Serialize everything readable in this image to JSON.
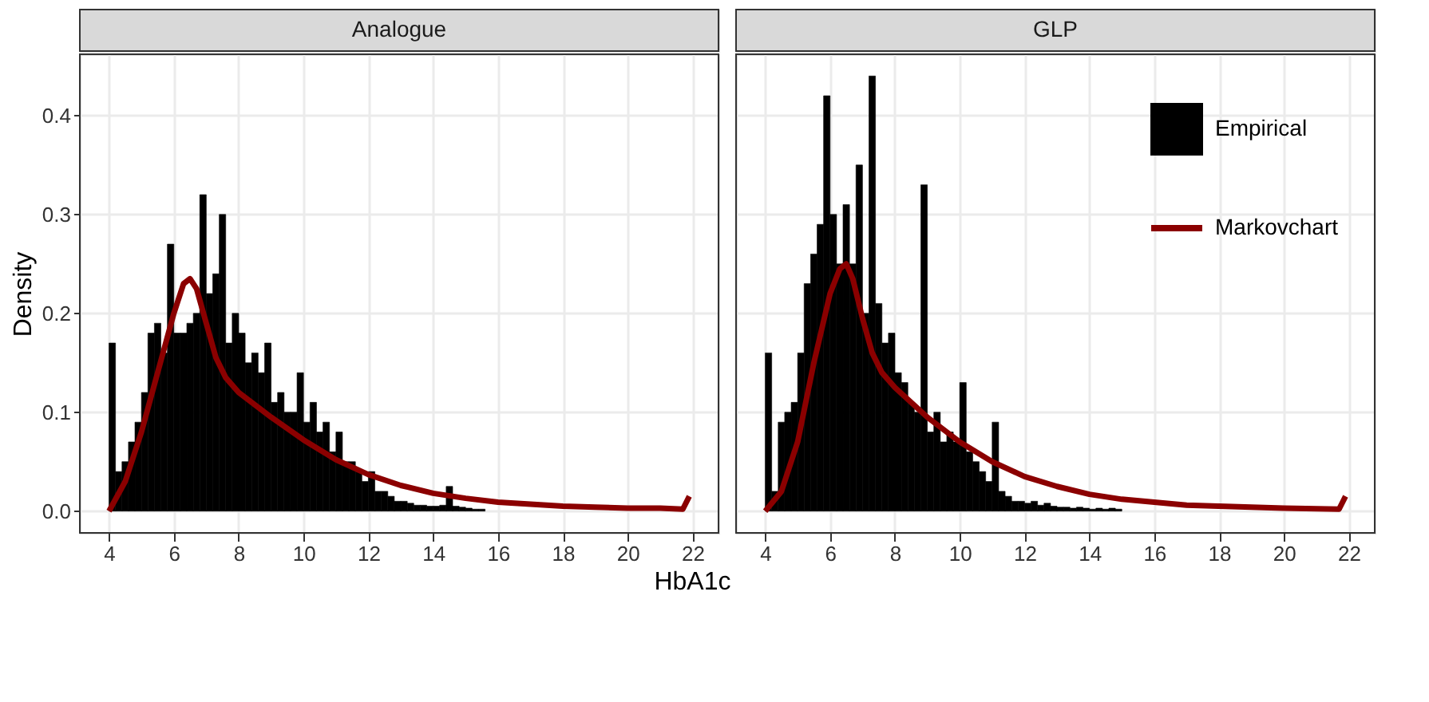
{
  "chart_data": [
    {
      "type": "histogram",
      "title": "Analogue",
      "xlabel": "HbA1c",
      "ylabel": "Density",
      "xlim": [
        3.1,
        22.8
      ],
      "ylim": [
        -0.022,
        0.462
      ],
      "xticks": [
        4,
        6,
        8,
        10,
        12,
        14,
        16,
        18,
        20,
        22
      ],
      "yticks": [
        {
          "value": 0,
          "label": "0.0"
        },
        0.1,
        0.2,
        0.3,
        0.4
      ],
      "grid": true,
      "legend": false,
      "series": [
        {
          "color": "#000000",
          "bins": [
            4.0,
            4.2,
            4.4,
            4.6,
            4.8,
            5.0,
            5.2,
            5.4,
            5.6,
            5.8,
            6.0,
            6.2,
            6.4,
            6.6,
            6.8,
            7.0,
            7.2,
            7.4,
            7.6,
            7.8,
            8.0,
            8.2,
            8.4,
            8.6,
            8.8,
            9.0,
            9.2,
            9.4,
            9.6,
            9.8,
            10.0,
            10.2,
            10.4,
            10.6,
            10.8,
            11.0,
            11.2,
            11.4,
            11.6,
            11.8,
            12.0,
            12.2,
            12.4,
            12.6,
            12.8,
            13.0,
            13.2,
            13.4,
            13.6,
            13.8,
            14.0,
            14.2,
            14.4,
            14.6,
            14.8,
            15.0,
            15.2,
            15.4,
            15.6
          ],
          "values": [
            0.17,
            0.04,
            0.05,
            0.07,
            0.09,
            0.12,
            0.18,
            0.19,
            0.16,
            0.27,
            0.18,
            0.18,
            0.19,
            0.2,
            0.32,
            0.22,
            0.24,
            0.3,
            0.17,
            0.2,
            0.18,
            0.15,
            0.16,
            0.14,
            0.17,
            0.11,
            0.12,
            0.1,
            0.1,
            0.14,
            0.09,
            0.11,
            0.08,
            0.09,
            0.06,
            0.08,
            0.05,
            0.05,
            0.04,
            0.03,
            0.04,
            0.02,
            0.02,
            0.015,
            0.01,
            0.01,
            0.008,
            0.006,
            0.006,
            0.005,
            0.005,
            0.006,
            0.025,
            0.005,
            0.004,
            0.003,
            0.002,
            0.002
          ]
        },
        {
          "type": "line",
          "color": "#8b0000",
          "x": [
            4.0,
            4.5,
            5.0,
            5.5,
            6.0,
            6.3,
            6.5,
            6.7,
            7.0,
            7.3,
            7.6,
            8,
            9,
            10,
            11,
            12,
            13,
            14,
            15,
            16,
            17,
            18,
            19,
            20,
            21,
            21.7,
            21.9
          ],
          "values": [
            0.0,
            0.03,
            0.08,
            0.14,
            0.2,
            0.23,
            0.235,
            0.225,
            0.19,
            0.155,
            0.135,
            0.12,
            0.095,
            0.072,
            0.052,
            0.037,
            0.026,
            0.018,
            0.013,
            0.009,
            0.007,
            0.005,
            0.004,
            0.003,
            0.003,
            0.002,
            0.015
          ]
        }
      ]
    },
    {
      "type": "histogram",
      "title": "GLP",
      "xlim": [
        3.1,
        22.8
      ],
      "ylim": [
        -0.022,
        0.462
      ],
      "xticks": [
        4,
        6,
        8,
        10,
        12,
        14,
        16,
        18,
        20,
        22
      ],
      "yticks": [
        0,
        0.1,
        0.2,
        0.3,
        0.4
      ],
      "grid": true,
      "legend": "top right",
      "tick_labels": "x",
      "series": [
        {
          "name": "Empirical",
          "color": "#000000",
          "bins": [
            4.0,
            4.2,
            4.4,
            4.6,
            4.8,
            5.0,
            5.2,
            5.4,
            5.6,
            5.8,
            6.0,
            6.2,
            6.4,
            6.6,
            6.8,
            7.0,
            7.2,
            7.4,
            7.6,
            7.8,
            8.0,
            8.2,
            8.4,
            8.6,
            8.8,
            9.0,
            9.2,
            9.4,
            9.6,
            9.8,
            10.0,
            10.2,
            10.4,
            10.6,
            10.8,
            11.0,
            11.2,
            11.4,
            11.6,
            11.8,
            12.0,
            12.2,
            12.4,
            12.6,
            12.8,
            13.0,
            13.2,
            13.4,
            13.6,
            13.8,
            14.0,
            14.2,
            14.4,
            14.6,
            14.8,
            15.0
          ],
          "values": [
            0.16,
            0.02,
            0.09,
            0.1,
            0.11,
            0.16,
            0.23,
            0.26,
            0.29,
            0.42,
            0.3,
            0.25,
            0.31,
            0.25,
            0.35,
            0.2,
            0.44,
            0.21,
            0.17,
            0.18,
            0.14,
            0.13,
            0.11,
            0.1,
            0.33,
            0.08,
            0.1,
            0.07,
            0.08,
            0.07,
            0.13,
            0.06,
            0.05,
            0.04,
            0.03,
            0.09,
            0.02,
            0.015,
            0.01,
            0.01,
            0.008,
            0.01,
            0.006,
            0.008,
            0.005,
            0.004,
            0.004,
            0.003,
            0.004,
            0.003,
            0.002,
            0.003,
            0.002,
            0.003,
            0.002
          ]
        },
        {
          "name": "Markovchart",
          "type": "line",
          "color": "#8b0000",
          "x": [
            4.0,
            4.5,
            5.0,
            5.5,
            6.0,
            6.3,
            6.5,
            6.7,
            7.0,
            7.3,
            7.6,
            8,
            9,
            10,
            11,
            12,
            13,
            14,
            15,
            16,
            17,
            18,
            20,
            21.7,
            21.9
          ],
          "values": [
            0.0,
            0.02,
            0.07,
            0.15,
            0.22,
            0.245,
            0.25,
            0.235,
            0.195,
            0.16,
            0.14,
            0.125,
            0.095,
            0.07,
            0.05,
            0.035,
            0.025,
            0.017,
            0.012,
            0.009,
            0.006,
            0.005,
            0.003,
            0.002,
            0.015
          ]
        }
      ]
    }
  ]
}
